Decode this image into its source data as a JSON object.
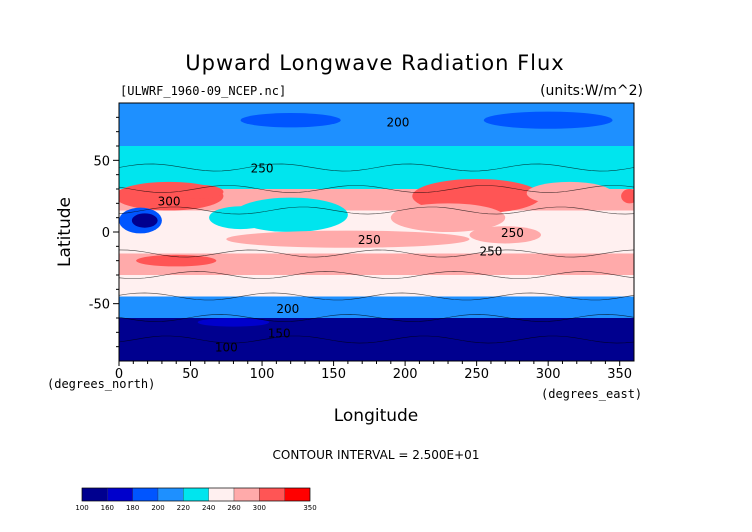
{
  "chart_data": {
    "type": "heatmap",
    "title": "Upward Longwave Radiation Flux",
    "source_label": "[ULWRF_1960-09_NCEP.nc]",
    "units_label": "(units:W/m^2)",
    "xlabel": "Longitude",
    "ylabel": "Latitude",
    "x_units_label": "(degrees_east)",
    "y_units_label": "(degrees_north)",
    "xlim": [
      0,
      360
    ],
    "ylim": [
      -90,
      90
    ],
    "x_ticks": [
      0,
      50,
      100,
      150,
      200,
      250,
      300,
      350
    ],
    "y_ticks": [
      -50,
      0,
      50
    ],
    "contour_interval_label": "CONTOUR INTERVAL = 2.500E+01",
    "contour_labels": [
      {
        "text": "200",
        "lon": 195,
        "lat": 77
      },
      {
        "text": "250",
        "lon": 100,
        "lat": 45
      },
      {
        "text": "300",
        "lon": 35,
        "lat": 22
      },
      {
        "text": "250",
        "lon": 175,
        "lat": -5
      },
      {
        "text": "250",
        "lon": 275,
        "lat": 0
      },
      {
        "text": "250",
        "lon": 260,
        "lat": -13
      },
      {
        "text": "200",
        "lon": 118,
        "lat": -53
      },
      {
        "text": "150",
        "lon": 112,
        "lat": -70
      },
      {
        "text": "100",
        "lon": 75,
        "lat": -80
      }
    ],
    "colorbar": {
      "boundaries": [
        100,
        160,
        180,
        200,
        220,
        240,
        260,
        300,
        350
      ],
      "colors": [
        "#00008f",
        "#0000cc",
        "#0055ff",
        "#1e90ff",
        "#00e5ee",
        "#fff0f0",
        "#ffaaaa",
        "#ff5555",
        "#ff0000"
      ]
    },
    "field_summary": {
      "lat_bands": [
        {
          "lat": [
            60,
            90
          ],
          "value": 205
        },
        {
          "lat": [
            30,
            60
          ],
          "value": 235
        },
        {
          "lat": [
            15,
            30
          ],
          "value": 275
        },
        {
          "lat": [
            -15,
            15
          ],
          "value": 250
        },
        {
          "lat": [
            -30,
            -15
          ],
          "value": 270
        },
        {
          "lat": [
            -45,
            -30
          ],
          "value": 245
        },
        {
          "lat": [
            -60,
            -45
          ],
          "value": 210
        },
        {
          "lat": [
            -90,
            -60
          ],
          "value": 150
        }
      ]
    }
  }
}
